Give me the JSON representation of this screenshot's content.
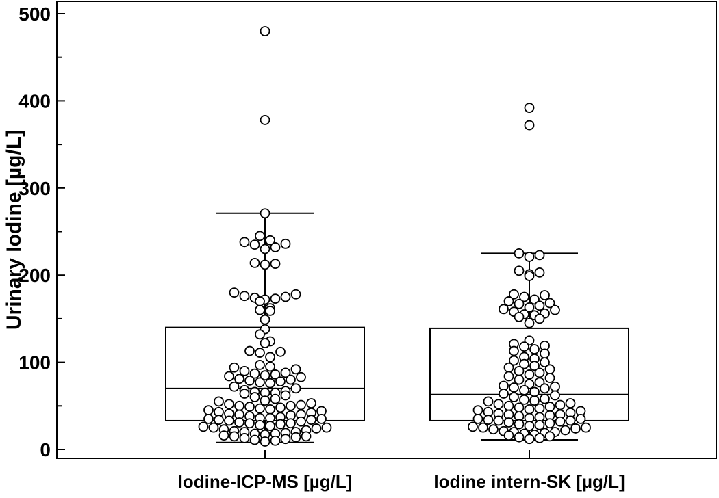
{
  "chart_data": {
    "type": "box",
    "ylabel": "Urinary Iodine [µg/L]",
    "ylim": [
      0,
      500
    ],
    "y_ticks": [
      0,
      100,
      200,
      300,
      400,
      500
    ],
    "y_tick_labels": [
      "0",
      "100",
      "200",
      "300",
      "400",
      "500"
    ],
    "categories": [
      "Iodine-ICP-MS [µg/L]",
      "Iodine intern-SK [µg/L]"
    ],
    "grid": false,
    "series": [
      {
        "box": {
          "whisker_low": 8,
          "q1": 33,
          "median": 70,
          "q3": 140,
          "whisker_high": 271
        },
        "points": [
          480,
          378,
          271,
          245,
          240,
          238,
          236,
          235,
          232,
          230,
          214,
          213,
          212,
          180,
          178,
          176,
          175,
          174,
          173,
          172,
          170,
          162,
          160,
          159,
          149,
          138,
          132,
          124,
          122,
          113,
          112,
          111,
          106,
          97,
          95,
          94,
          92,
          90,
          88,
          87,
          86,
          85,
          84,
          83,
          81,
          80,
          79,
          78,
          77,
          76,
          72,
          70,
          68,
          67,
          66,
          65,
          65,
          64,
          62,
          60,
          58,
          56,
          55,
          53,
          52,
          51,
          50,
          50,
          49,
          48,
          47,
          46,
          45,
          44,
          43,
          42,
          41,
          40,
          40,
          39,
          38,
          37,
          36,
          36,
          35,
          35,
          34,
          34,
          33,
          32,
          31,
          30,
          30,
          29,
          28,
          27,
          26,
          25,
          25,
          24,
          23,
          22,
          21,
          20,
          20,
          19,
          18,
          18,
          17,
          16,
          15,
          15,
          14,
          13,
          12,
          11,
          10,
          9
        ]
      },
      {
        "box": {
          "whisker_low": 11,
          "q1": 33,
          "median": 63,
          "q3": 139,
          "whisker_high": 225
        },
        "points": [
          392,
          372,
          225,
          223,
          221,
          205,
          203,
          201,
          199,
          178,
          177,
          175,
          172,
          170,
          168,
          167,
          165,
          163,
          161,
          160,
          158,
          156,
          155,
          154,
          152,
          150,
          145,
          125,
          121,
          119,
          118,
          115,
          113,
          110,
          106,
          104,
          102,
          100,
          98,
          96,
          94,
          92,
          90,
          88,
          86,
          84,
          82,
          80,
          77,
          75,
          73,
          72,
          71,
          70,
          68,
          66,
          64,
          62,
          60,
          58,
          57,
          56,
          55,
          53,
          52,
          51,
          50,
          49,
          48,
          47,
          46,
          45,
          44,
          43,
          42,
          41,
          40,
          40,
          39,
          38,
          37,
          36,
          35,
          35,
          34,
          33,
          33,
          32,
          31,
          30,
          29,
          28,
          27,
          26,
          25,
          25,
          24,
          23,
          22,
          21,
          20,
          20,
          19,
          18,
          17,
          16,
          15,
          14,
          13,
          12
        ]
      }
    ]
  }
}
